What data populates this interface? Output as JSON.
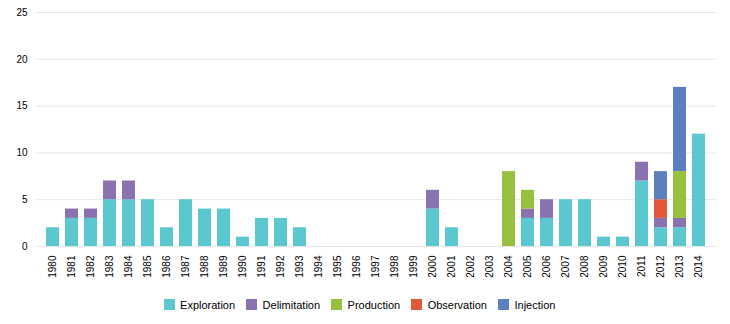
{
  "chart_data": {
    "type": "bar",
    "stacked": true,
    "categories": [
      "1980",
      "1981",
      "1982",
      "1983",
      "1984",
      "1985",
      "1986",
      "1987",
      "1988",
      "1989",
      "1990",
      "1991",
      "1992",
      "1993",
      "1994",
      "1995",
      "1996",
      "1997",
      "1998",
      "1999",
      "2000",
      "2001",
      "2002",
      "2003",
      "2004",
      "2005",
      "2006",
      "2007",
      "2008",
      "2009",
      "2010",
      "2011",
      "2012",
      "2013",
      "2014"
    ],
    "series": [
      {
        "name": "Exploration",
        "color": "#5bc8d0",
        "values": [
          2,
          3,
          3,
          5,
          5,
          5,
          2,
          5,
          4,
          4,
          1,
          3,
          3,
          2,
          0,
          0,
          0,
          0,
          0,
          0,
          4,
          2,
          0,
          0,
          0,
          3,
          3,
          5,
          5,
          1,
          1,
          7,
          2,
          2,
          12
        ]
      },
      {
        "name": "Delimitation",
        "color": "#8a72b0",
        "values": [
          0,
          1,
          1,
          2,
          2,
          0,
          0,
          0,
          0,
          0,
          0,
          0,
          0,
          0,
          0,
          0,
          0,
          0,
          0,
          0,
          2,
          0,
          0,
          0,
          0,
          1,
          2,
          0,
          0,
          0,
          0,
          2,
          1,
          1,
          0
        ]
      },
      {
        "name": "Production",
        "color": "#96c03d",
        "values": [
          0,
          0,
          0,
          0,
          0,
          0,
          0,
          0,
          0,
          0,
          0,
          0,
          0,
          0,
          0,
          0,
          0,
          0,
          0,
          0,
          0,
          0,
          0,
          0,
          8,
          2,
          0,
          0,
          0,
          0,
          0,
          0,
          0,
          5,
          0
        ]
      },
      {
        "name": "Observation",
        "color": "#e05a3a",
        "values": [
          0,
          0,
          0,
          0,
          0,
          0,
          0,
          0,
          0,
          0,
          0,
          0,
          0,
          0,
          0,
          0,
          0,
          0,
          0,
          0,
          0,
          0,
          0,
          0,
          0,
          0,
          0,
          0,
          0,
          0,
          0,
          0,
          2,
          0,
          0
        ]
      },
      {
        "name": "Injection",
        "color": "#5b7fbf",
        "values": [
          0,
          0,
          0,
          0,
          0,
          0,
          0,
          0,
          0,
          0,
          0,
          0,
          0,
          0,
          0,
          0,
          0,
          0,
          0,
          0,
          0,
          0,
          0,
          0,
          0,
          0,
          0,
          0,
          0,
          0,
          0,
          0,
          3,
          9,
          0
        ]
      }
    ],
    "ylim": [
      0,
      25
    ],
    "yticks": [
      0,
      5,
      10,
      15,
      20,
      25
    ],
    "grid": true,
    "legend": "bottom"
  }
}
